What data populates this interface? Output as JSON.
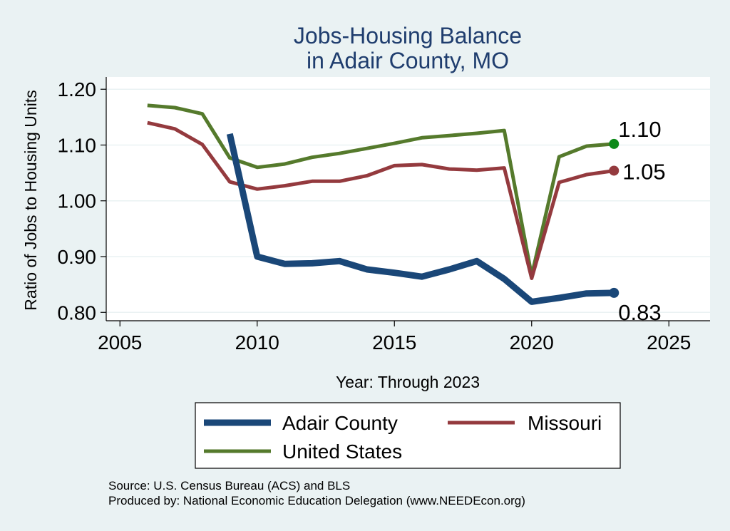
{
  "chart_data": {
    "type": "line",
    "title": [
      "Jobs-Housing Balance",
      "in Adair County, MO"
    ],
    "xlabel": "Year: Through 2023",
    "ylabel": "Ratio of Jobs to Housing Units",
    "xlim": [
      2004.5,
      2026.5
    ],
    "ylim": [
      0.785,
      1.222
    ],
    "xticks": [
      2005,
      2010,
      2015,
      2020,
      2025
    ],
    "yticks": [
      0.8,
      0.9,
      1.0,
      1.1,
      1.2
    ],
    "ytick_labels": [
      "0.80",
      "0.90",
      "1.00",
      "1.10",
      "1.20"
    ],
    "grid": true,
    "series": [
      {
        "name": "Adair County",
        "color": "#1a4778",
        "x": [
          2009,
          2010,
          2011,
          2012,
          2013,
          2014,
          2015,
          2016,
          2017,
          2018,
          2019,
          2020,
          2021,
          2022,
          2023
        ],
        "y": [
          1.12,
          0.9,
          0.887,
          0.888,
          0.892,
          0.877,
          0.871,
          0.864,
          0.877,
          0.892,
          0.86,
          0.819,
          0.826,
          0.834,
          0.835
        ],
        "end_label": "0.83"
      },
      {
        "name": "Missouri",
        "color": "#943a3e",
        "x": [
          2006,
          2007,
          2008,
          2009,
          2010,
          2011,
          2012,
          2013,
          2014,
          2015,
          2016,
          2017,
          2018,
          2019,
          2020,
          2021,
          2022,
          2023
        ],
        "y": [
          1.14,
          1.129,
          1.101,
          1.034,
          1.021,
          1.027,
          1.035,
          1.035,
          1.045,
          1.063,
          1.065,
          1.057,
          1.055,
          1.059,
          0.861,
          1.033,
          1.047,
          1.054
        ],
        "end_label": "1.05"
      },
      {
        "name": "United States",
        "color": "#557a2c",
        "x": [
          2006,
          2007,
          2008,
          2009,
          2010,
          2011,
          2012,
          2013,
          2014,
          2015,
          2016,
          2017,
          2018,
          2019,
          2020,
          2021,
          2022,
          2023
        ],
        "y": [
          1.171,
          1.167,
          1.156,
          1.077,
          1.06,
          1.066,
          1.078,
          1.085,
          1.094,
          1.103,
          1.113,
          1.117,
          1.121,
          1.126,
          0.866,
          1.079,
          1.098,
          1.102
        ],
        "end_label": "1.10"
      }
    ],
    "legend": {
      "placement": "bottom",
      "order": [
        "Adair County",
        "Missouri",
        "United States"
      ]
    },
    "end_marker_colors": [
      "#1a4778",
      "#943a3e",
      "#0d8a1a"
    ]
  },
  "source": {
    "line1": "Source: U.S. Census Bureau (ACS) and BLS",
    "line2": "Produced by: National Economic Education Delegation (www.NEEDEcon.org)"
  },
  "colors": {
    "background": "#eaf2f3",
    "plot_background": "#ffffff",
    "title": "#1f3d6e",
    "grid": "#eaf2f3"
  }
}
